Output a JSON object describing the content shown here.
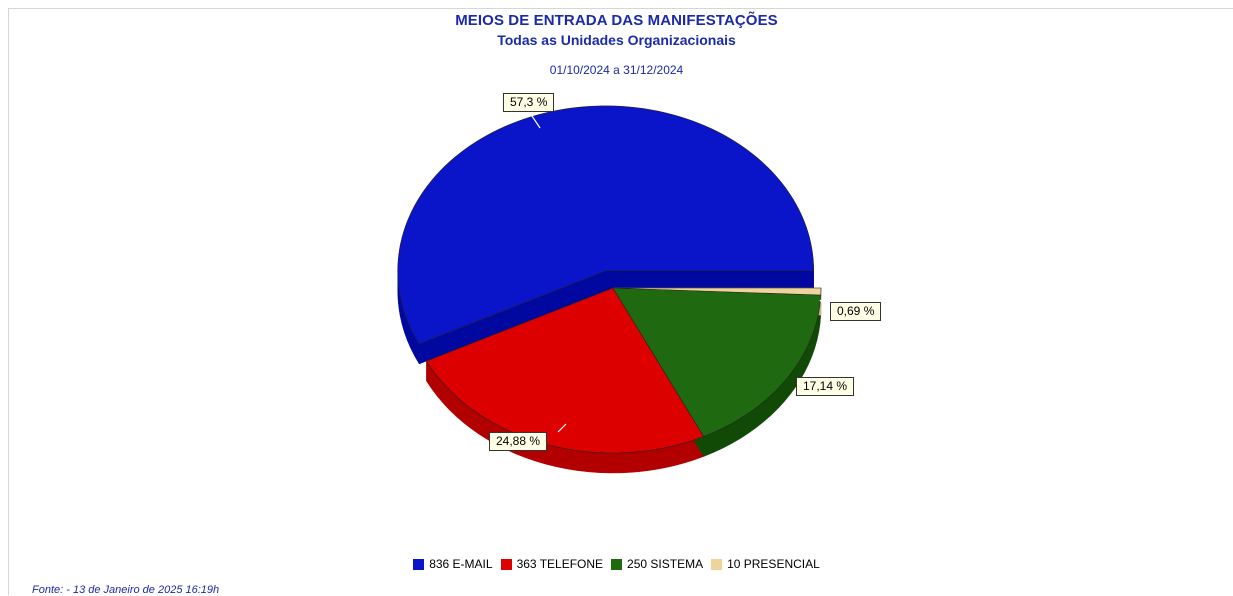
{
  "chart_data": {
    "type": "pie",
    "title": "MEIOS DE ENTRADA DAS MANIFESTAÇÕES",
    "subtitle": "Todas as Unidades Organizacionais",
    "period": "01/10/2024 a 31/12/2024",
    "slices": [
      {
        "name": "E-MAIL",
        "value": 836,
        "percent_label": "57,3 %",
        "percent": 57.3,
        "color": "#0a14c8",
        "side_color": "#0008a0"
      },
      {
        "name": "TELEFONE",
        "value": 363,
        "percent_label": "24,88 %",
        "percent": 24.88,
        "color": "#dd0000",
        "side_color": "#b20000"
      },
      {
        "name": "SISTEMA",
        "value": 250,
        "percent_label": "17,14 %",
        "percent": 17.14,
        "color": "#1f6a10",
        "side_color": "#114a06"
      },
      {
        "name": "PRESENCIAL",
        "value": 10,
        "percent_label": "0,69 %",
        "percent": 0.69,
        "color": "#ecd49a",
        "side_color": "#cdb47a"
      }
    ],
    "legend": [
      {
        "label": "836 E-MAIL",
        "color": "#0a14c8"
      },
      {
        "label": "363 TELEFONE",
        "color": "#dd0000"
      },
      {
        "label": "250 SISTEMA",
        "color": "#1f6a10"
      },
      {
        "label": "10 PRESENCIAL",
        "color": "#ecd49a"
      }
    ],
    "legend_position": "bottom",
    "footer": "Fonte: - 13 de Janeiro de 2025 16:19h"
  }
}
